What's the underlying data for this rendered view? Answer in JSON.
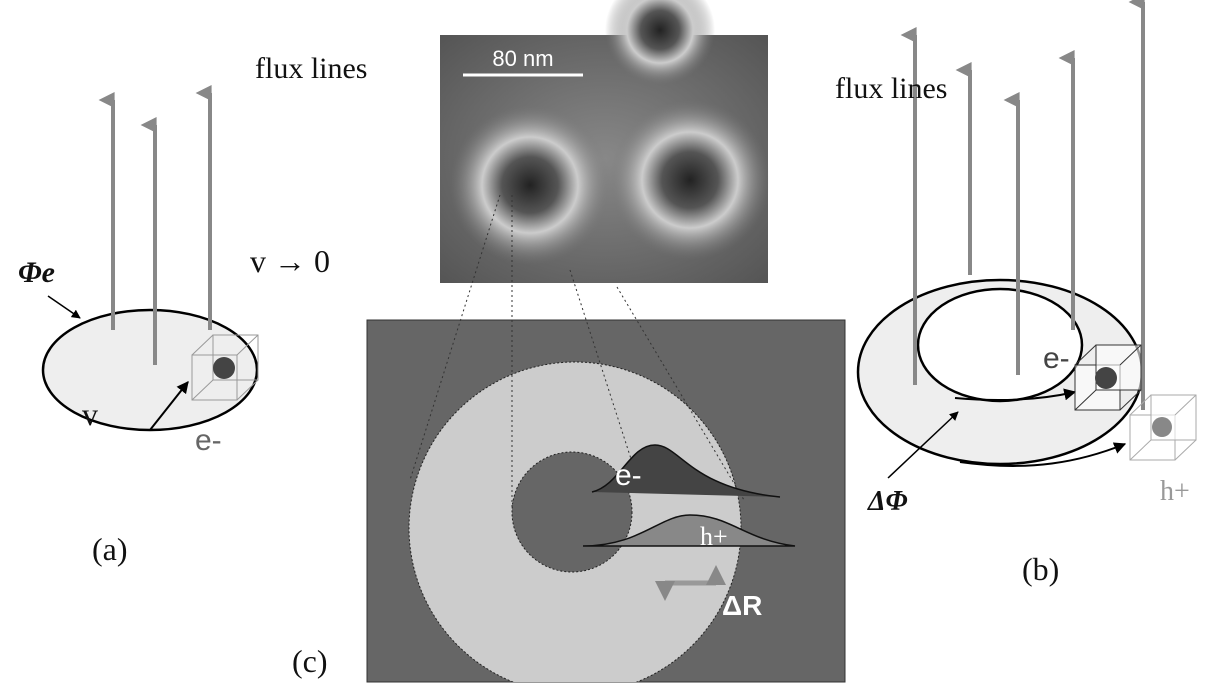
{
  "panel_a": {
    "flux_label": "flux lines",
    "flux_symbol": "Φe",
    "velocity_limit": "v → 0",
    "velocity": "v",
    "electron": "e-",
    "label": "(a)"
  },
  "panel_c": {
    "scale_bar": "80 nm",
    "electron": "e-",
    "hole": "h+",
    "delta_r": "ΔR",
    "label": "(c)"
  },
  "panel_b": {
    "flux_label": "flux lines",
    "electron": "e-",
    "hole": "h+",
    "delta_flux": "ΔΦ",
    "label": "(b)"
  }
}
